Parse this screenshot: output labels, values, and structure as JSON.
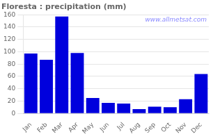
{
  "chart_data": {
    "type": "bar",
    "title": "Floresta : precipitation (mm)",
    "categories": [
      "Jan",
      "Feb",
      "Mar",
      "Apr",
      "May",
      "Jun",
      "Jul",
      "Aug",
      "Sep",
      "Oct",
      "Nov",
      "Dec"
    ],
    "values": [
      97,
      87,
      157,
      98,
      25,
      17,
      16,
      7,
      11,
      10,
      23,
      64
    ],
    "color": "#0000dd",
    "ylim": [
      0,
      160
    ],
    "yticks": [
      0,
      20,
      40,
      60,
      80,
      100,
      120,
      140,
      160
    ],
    "grid": true,
    "annotations": [
      "www.allmetsat.com"
    ]
  }
}
